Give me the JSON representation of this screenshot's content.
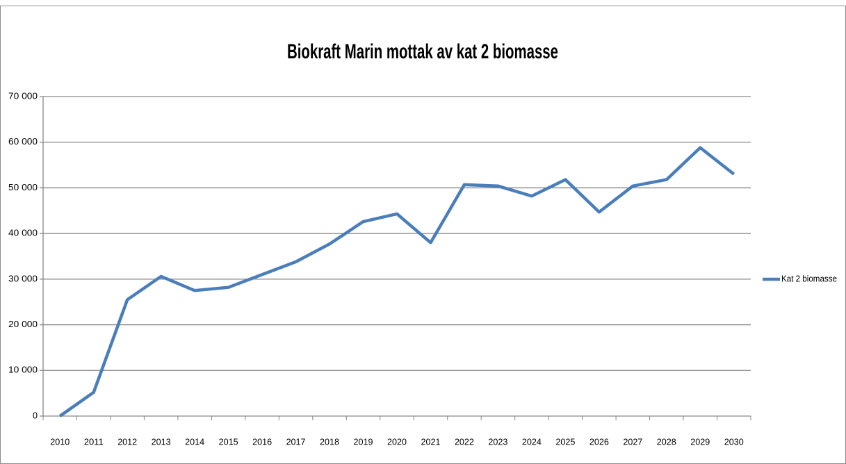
{
  "chart_data": {
    "type": "line",
    "title": "Biokraft Marin mottak av kat 2 biomasse",
    "categories": [
      "2010",
      "2011",
      "2012",
      "2013",
      "2014",
      "2015",
      "2016",
      "2017",
      "2018",
      "2019",
      "2020",
      "2021",
      "2022",
      "2023",
      "2024",
      "2025",
      "2026",
      "2027",
      "2028",
      "2029",
      "2030"
    ],
    "series": [
      {
        "name": "Kat 2 biomasse",
        "color": "#4a7ebb",
        "values": [
          0,
          5200,
          25500,
          30600,
          27500,
          28200,
          31000,
          33800,
          37700,
          42600,
          44300,
          38000,
          50700,
          50400,
          48200,
          51800,
          44700,
          50400,
          51800,
          58800,
          53000
        ]
      }
    ],
    "ylim": [
      0,
      70000
    ],
    "yticks": [
      0,
      {
        "value": 10000,
        "label": "10 000"
      },
      {
        "value": 20000,
        "label": "20 000"
      },
      {
        "value": 30000,
        "label": "30 000"
      },
      {
        "value": 40000,
        "label": "40 000"
      },
      {
        "value": 50000,
        "label": "50 000"
      },
      {
        "value": 60000,
        "label": "60 000"
      },
      {
        "value": 70000,
        "label": "70 000"
      }
    ],
    "grid": true,
    "legend": "right"
  }
}
